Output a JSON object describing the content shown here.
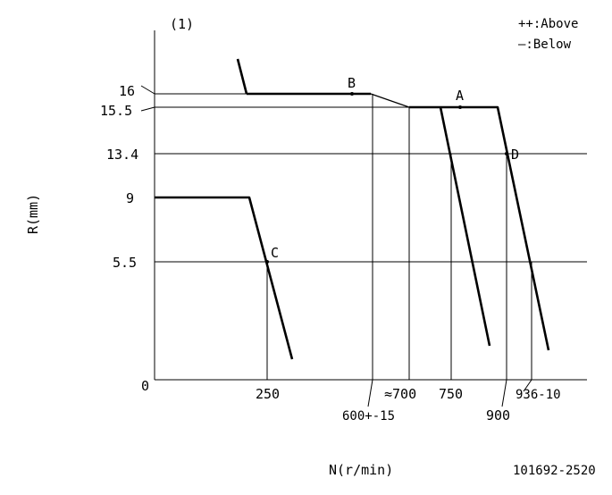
{
  "figure": {
    "panel_label": "(1)",
    "legend": {
      "above": "++:Above",
      "below": "—:Below"
    },
    "y_axis_label": "R(mm)",
    "x_axis_label": "N(r/min)",
    "figure_code": "101692-2520",
    "y_ticks": [
      "16",
      "15.5",
      "13.4",
      "9",
      "5.5",
      "0"
    ],
    "x_ticks": [
      "250",
      "600+-15",
      "≈700",
      "750",
      "900",
      "936-10"
    ],
    "points": {
      "A": "A",
      "B": "B",
      "C": "C",
      "D": "D"
    }
  },
  "colors": {
    "line": "#000000",
    "background": "#ffffff"
  }
}
